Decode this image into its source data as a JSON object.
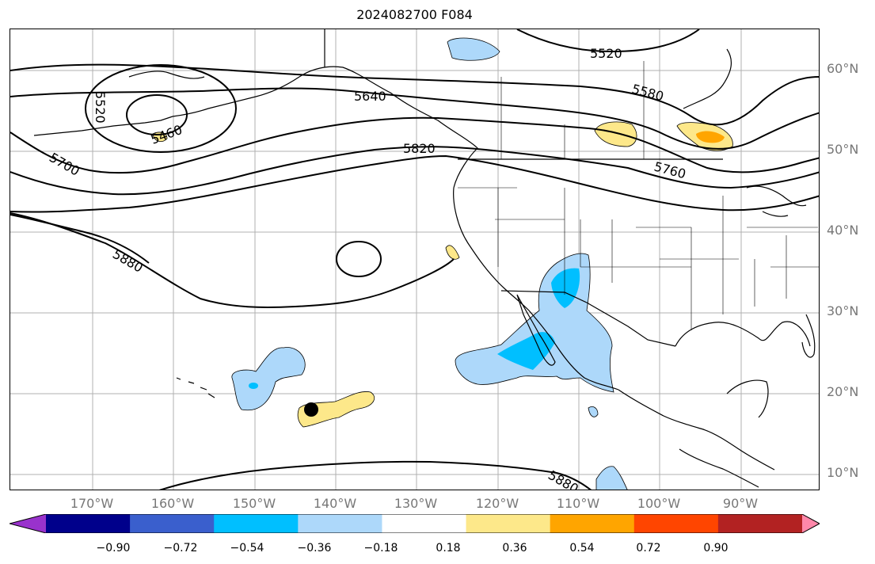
{
  "title": "2024082700 F084",
  "map": {
    "projection": "PlateCarree",
    "extent": {
      "lon_min": -180,
      "lon_max": -80,
      "lat_min": 8,
      "lat_max": 65
    },
    "gridlines": true,
    "lat_labels": [
      "60°N",
      "50°N",
      "40°N",
      "30°N",
      "20°N",
      "10°N"
    ],
    "lon_labels": [
      "170°W",
      "160°W",
      "150°W",
      "140°W",
      "130°W",
      "120°W",
      "110°W",
      "100°W",
      "90°W"
    ],
    "height_contours": {
      "color": "#000000",
      "labels": [
        "5520",
        "5580",
        "5640",
        "5460",
        "5520",
        "5700",
        "5820",
        "5760",
        "5880",
        "5880"
      ]
    },
    "storm_marker": {
      "lon": -143,
      "lat": 18,
      "color": "#000000"
    },
    "fill_colors": {
      "light_blue": "#add8fa",
      "deep_sky_blue": "#00bfff",
      "light_yellow": "#fde88a",
      "orange": "#ffa500"
    }
  },
  "colorbar": {
    "ticks": [
      "−0.90",
      "−0.72",
      "−0.54",
      "−0.36",
      "−0.18",
      "0.18",
      "0.36",
      "0.54",
      "0.72",
      "0.90"
    ],
    "colors": [
      "#9932cc",
      "#00008b",
      "#3a5fcd",
      "#00bfff",
      "#add8fa",
      "#ffffff",
      "#fde88a",
      "#ffa500",
      "#ff4500",
      "#b22222",
      "#ff88aa"
    ],
    "extend": "both"
  }
}
